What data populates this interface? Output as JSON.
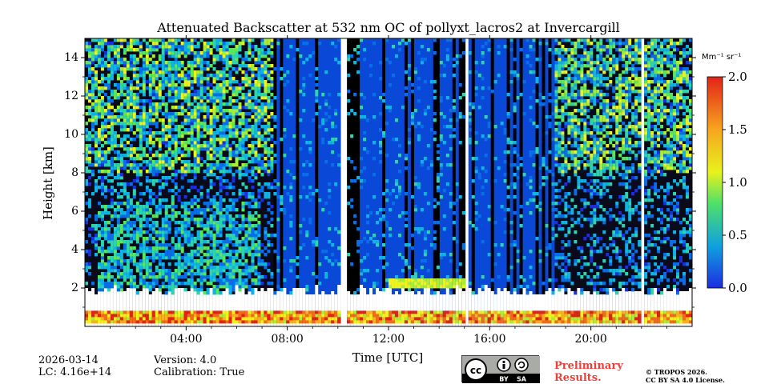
{
  "chart_data": {
    "type": "heatmap",
    "title": "Attenuated Backscatter at 532 nm OC of pollyxt_lacros2 at Invercargill",
    "xlabel": "Time [UTC]",
    "ylabel": "Height [km]",
    "xlim": [
      0,
      24
    ],
    "ylim": [
      0,
      15
    ],
    "x_ticks": [
      4,
      8,
      12,
      16,
      20
    ],
    "x_tick_labels": [
      "04:00",
      "08:00",
      "12:00",
      "16:00",
      "20:00"
    ],
    "y_ticks": [
      2,
      4,
      6,
      8,
      10,
      12,
      14
    ],
    "y_tick_labels": [
      "2",
      "4",
      "6",
      "8",
      "10",
      "12",
      "14"
    ],
    "colorbar": {
      "unit_label": "Mm⁻¹ sr⁻¹",
      "range": [
        0.0,
        2.0
      ],
      "ticks": [
        0.0,
        0.5,
        1.0,
        1.5,
        2.0
      ],
      "tick_labels": [
        "0.0",
        "0.5",
        "1.0",
        "1.5",
        "2.0"
      ]
    },
    "features": [
      {
        "type": "noisy-background",
        "start": 0.0,
        "end": 7.5
      },
      {
        "type": "cloud-screened",
        "start": 7.5,
        "end": 18.6
      },
      {
        "type": "noisy-background",
        "start": 18.6,
        "end": 24.0
      },
      {
        "type": "data-gap",
        "start": 10.15,
        "end": 10.3
      },
      {
        "type": "data-gap",
        "start": 15.05,
        "end": 15.12
      },
      {
        "type": "data-gap",
        "start": 21.95,
        "end": 22.12
      },
      {
        "type": "aerosol-plume",
        "start": 0.5,
        "end": 7.0,
        "top_km": 6.5
      },
      {
        "type": "low-cloud-layer",
        "start": 12.0,
        "end": 15.0,
        "height_km": 2.3
      }
    ]
  },
  "footer": {
    "date": "2026-03-14",
    "lc": "LC: 4.16e+14",
    "version": "Version: 4.0",
    "calibration": "Calibration: True",
    "preliminary_line1": "Preliminary",
    "preliminary_line2": "Results.",
    "copyright_line1": "© TROPOS 2026.",
    "copyright_line2": "CC BY SA 4.0 License.",
    "cc_badge": {
      "by": "BY",
      "sa": "SA"
    }
  }
}
